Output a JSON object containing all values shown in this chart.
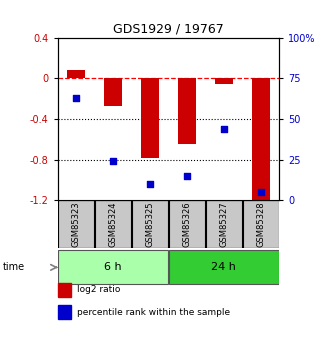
{
  "title": "GDS1929 / 19767",
  "samples": [
    "GSM85323",
    "GSM85324",
    "GSM85325",
    "GSM85326",
    "GSM85327",
    "GSM85328"
  ],
  "log2_ratio": [
    0.08,
    -0.27,
    -0.78,
    -0.65,
    -0.05,
    -1.22
  ],
  "percentile_rank": [
    63,
    24,
    10,
    15,
    44,
    5
  ],
  "ylim_left": [
    -1.2,
    0.4
  ],
  "ylim_right": [
    0,
    100
  ],
  "yticks_left": [
    0.4,
    0.0,
    -0.4,
    -0.8,
    -1.2
  ],
  "yticks_right": [
    100,
    75,
    50,
    25,
    0
  ],
  "dotted_lines": [
    -0.4,
    -0.8
  ],
  "groups": [
    {
      "label": "6 h",
      "samples": [
        0,
        1,
        2
      ],
      "color": "#AAFFAA"
    },
    {
      "label": "24 h",
      "samples": [
        3,
        4,
        5
      ],
      "color": "#33CC33"
    }
  ],
  "bar_color": "#CC0000",
  "dot_color": "#0000CC",
  "bar_width": 0.5,
  "background_color": "#ffffff",
  "left_axis_color": "#CC0000",
  "right_axis_color": "#0000CC",
  "legend_items": [
    {
      "label": "log2 ratio",
      "color": "#CC0000"
    },
    {
      "label": "percentile rank within the sample",
      "color": "#0000CC"
    }
  ],
  "sample_box_color": "#C8C8C8",
  "n_samples": 6
}
